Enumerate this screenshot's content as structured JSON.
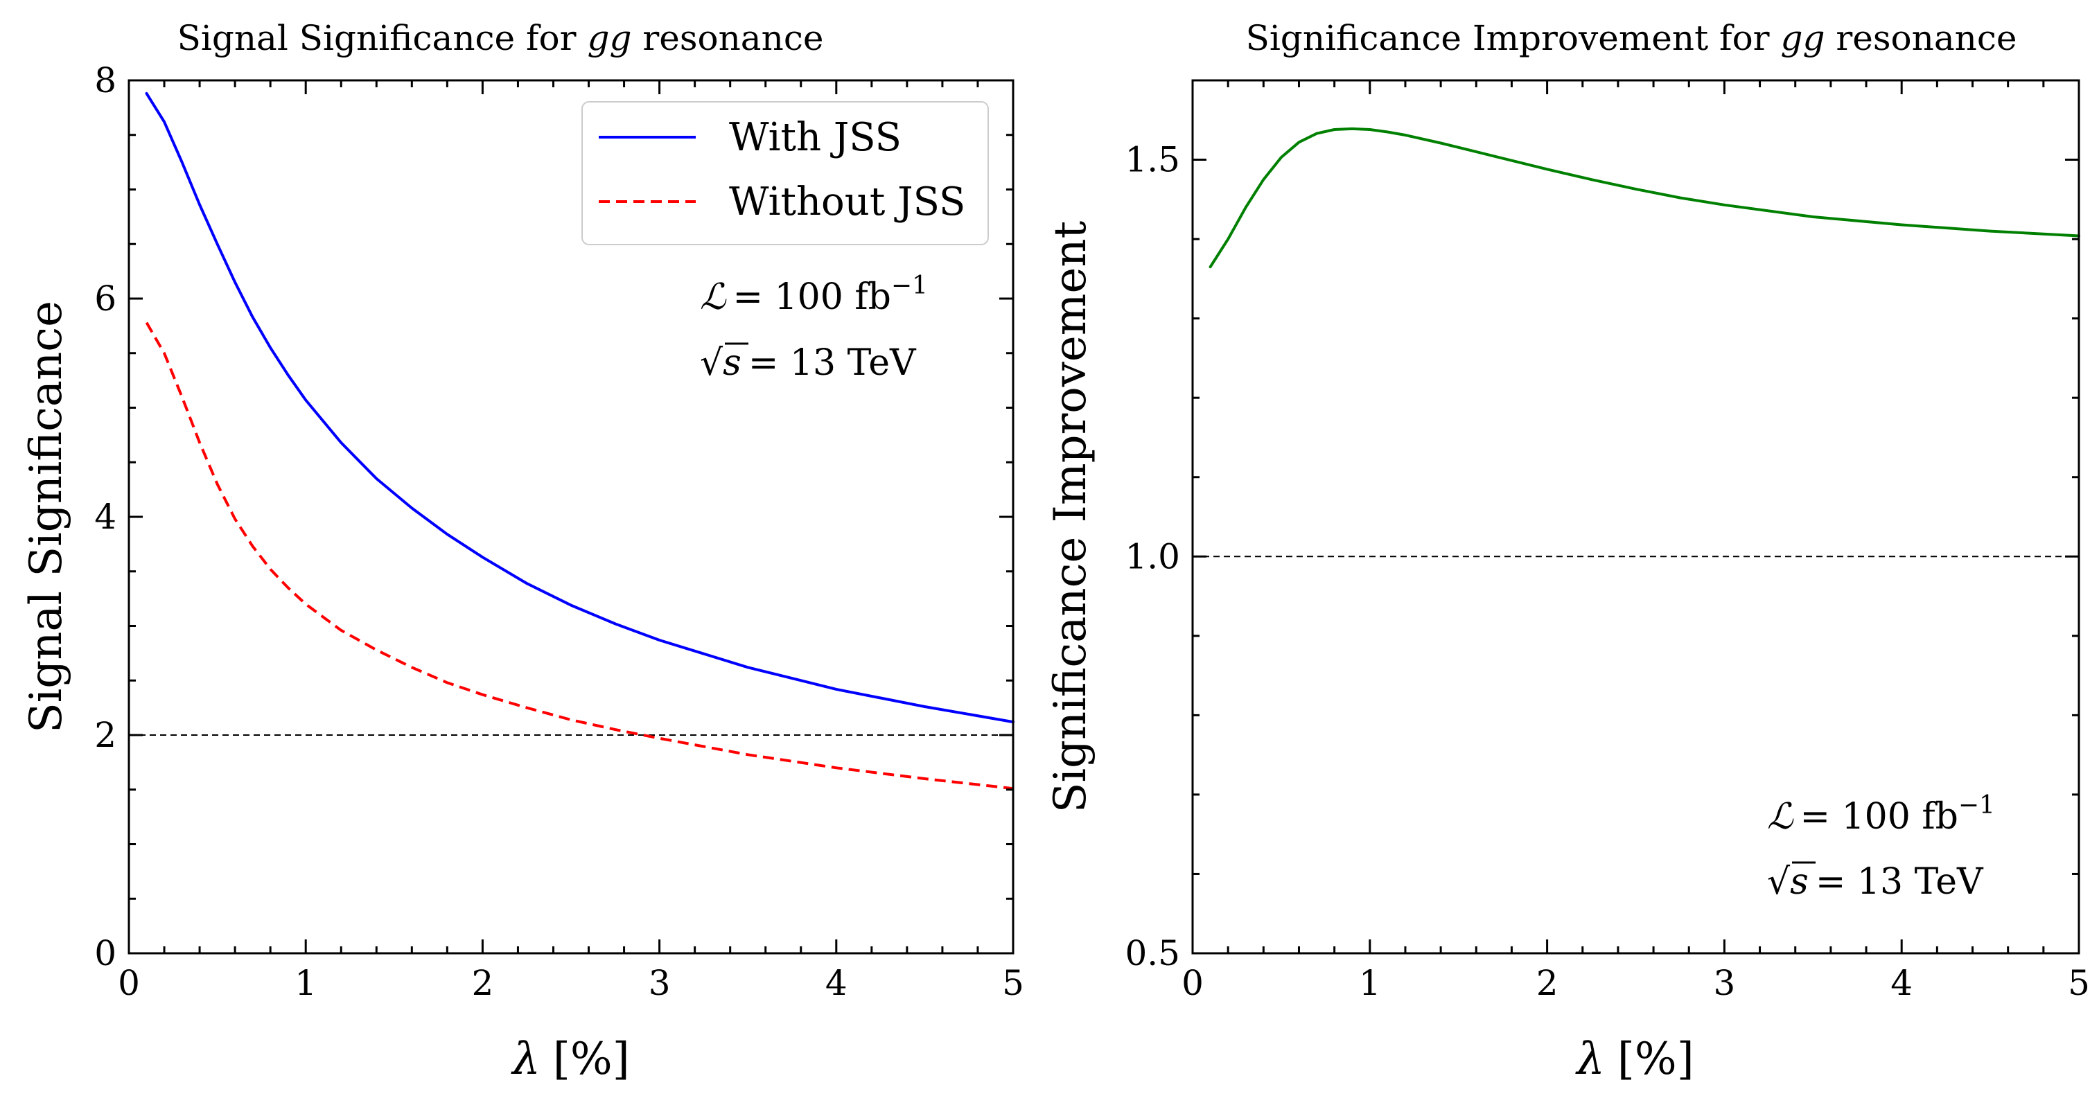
{
  "chart_data": [
    {
      "type": "line",
      "title": {
        "prefix": "Signal Significance for ",
        "math": "gg",
        "suffix": " resonance"
      },
      "xlabel": {
        "symbol": "λ",
        "unit": "[%]"
      },
      "ylabel": "Signal Significance",
      "xlim": [
        0,
        5
      ],
      "ylim": [
        0,
        8
      ],
      "xticks": [
        0,
        1,
        2,
        3,
        4,
        5
      ],
      "xtick_labels": [
        "0",
        "1",
        "2",
        "3",
        "4",
        "5"
      ],
      "yticks": [
        0,
        2,
        4,
        6,
        8
      ],
      "ytick_labels": [
        "0",
        "2",
        "4",
        "6",
        "8"
      ],
      "reference_line": {
        "y": 2,
        "color": "#000000",
        "style": "dashed"
      },
      "legend": {
        "placement": "top-right",
        "entries": [
          "With JSS",
          "Without JSS"
        ]
      },
      "annotation": {
        "luminosity": {
          "symbol": "ℒ",
          "equals": "= 100 fb",
          "superscript": "−1"
        },
        "energy": {
          "root": "√",
          "symbol": "s",
          "equals": "= 13 TeV"
        },
        "placement": "upper-right"
      },
      "series": [
        {
          "name": "With JSS",
          "color": "#0000ff",
          "style": "solid",
          "x": [
            0.1,
            0.2,
            0.3,
            0.4,
            0.5,
            0.6,
            0.7,
            0.8,
            0.9,
            1.0,
            1.2,
            1.4,
            1.6,
            1.8,
            2.0,
            2.25,
            2.5,
            2.75,
            3.0,
            3.5,
            4.0,
            4.5,
            5.0
          ],
          "y": [
            7.88,
            7.62,
            7.25,
            6.86,
            6.5,
            6.15,
            5.83,
            5.55,
            5.3,
            5.07,
            4.68,
            4.35,
            4.08,
            3.84,
            3.63,
            3.39,
            3.19,
            3.02,
            2.87,
            2.62,
            2.42,
            2.26,
            2.12
          ]
        },
        {
          "name": "Without JSS",
          "color": "#ff0000",
          "style": "dashed",
          "x": [
            0.1,
            0.2,
            0.3,
            0.4,
            0.5,
            0.6,
            0.7,
            0.8,
            0.9,
            1.0,
            1.2,
            1.4,
            1.6,
            1.8,
            2.0,
            2.25,
            2.5,
            2.75,
            3.0,
            3.5,
            4.0,
            4.5,
            5.0
          ],
          "y": [
            5.78,
            5.5,
            5.1,
            4.68,
            4.3,
            3.98,
            3.73,
            3.52,
            3.35,
            3.2,
            2.96,
            2.78,
            2.62,
            2.48,
            2.37,
            2.25,
            2.14,
            2.05,
            1.97,
            1.82,
            1.7,
            1.6,
            1.51
          ]
        }
      ]
    },
    {
      "type": "line",
      "title": {
        "prefix": "Significance Improvement for ",
        "math": "gg",
        "suffix": " resonance"
      },
      "xlabel": {
        "symbol": "λ",
        "unit": "[%]"
      },
      "ylabel": "Significance Improvement",
      "xlim": [
        0,
        5
      ],
      "ylim": [
        0.5,
        1.6
      ],
      "xticks": [
        0,
        1,
        2,
        3,
        4,
        5
      ],
      "xtick_labels": [
        "0",
        "1",
        "2",
        "3",
        "4",
        "5"
      ],
      "yticks": [
        0.5,
        1.0,
        1.5
      ],
      "ytick_labels": [
        "0.5",
        "1.0",
        "1.5"
      ],
      "reference_line": {
        "y": 1.0,
        "color": "#000000",
        "style": "dashed"
      },
      "annotation": {
        "luminosity": {
          "symbol": "ℒ",
          "equals": "= 100 fb",
          "superscript": "−1"
        },
        "energy": {
          "root": "√",
          "symbol": "s",
          "equals": "= 13 TeV"
        },
        "placement": "lower-right"
      },
      "series": [
        {
          "name": "Improvement",
          "color": "#008000",
          "style": "solid",
          "x": [
            0.1,
            0.2,
            0.3,
            0.4,
            0.5,
            0.6,
            0.7,
            0.8,
            0.9,
            1.0,
            1.1,
            1.2,
            1.4,
            1.6,
            1.8,
            2.0,
            2.25,
            2.5,
            2.75,
            3.0,
            3.5,
            4.0,
            4.5,
            5.0
          ],
          "y": [
            1.365,
            1.4,
            1.44,
            1.475,
            1.503,
            1.522,
            1.533,
            1.538,
            1.539,
            1.538,
            1.535,
            1.531,
            1.521,
            1.51,
            1.499,
            1.488,
            1.475,
            1.463,
            1.452,
            1.443,
            1.428,
            1.418,
            1.41,
            1.404
          ]
        }
      ]
    }
  ]
}
